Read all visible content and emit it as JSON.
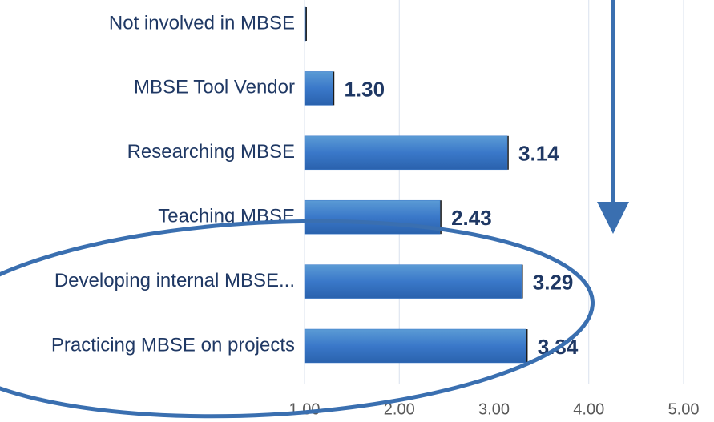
{
  "chart_data": {
    "type": "bar",
    "orientation": "horizontal",
    "categories": [
      "Not involved in MBSE",
      "MBSE Tool Vendor",
      "Researching MBSE",
      "Teaching MBSE",
      "Developing internal MBSE...",
      "Practicing MBSE on projects"
    ],
    "values": [
      1.01,
      1.3,
      3.14,
      2.43,
      3.29,
      3.34
    ],
    "value_labels": [
      null,
      "1.30",
      "3.14",
      "2.43",
      "3.29",
      "3.34"
    ],
    "color": "#3a78c9",
    "xlim": [
      1,
      5
    ],
    "xticks": [
      {
        "value": 1,
        "label": "1.00"
      },
      {
        "value": 2,
        "label": "2.00"
      },
      {
        "value": 3,
        "label": "3.00"
      },
      {
        "value": 4,
        "label": "4.00"
      },
      {
        "value": 5,
        "label": "5.00"
      }
    ],
    "grid": true
  }
}
